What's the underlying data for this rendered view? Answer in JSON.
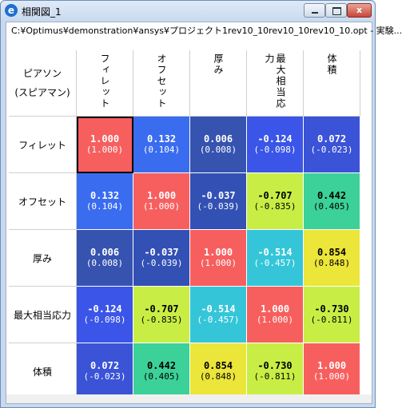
{
  "window": {
    "title": "相関図_1",
    "icon": "app-logo-icon",
    "close_glyph": "x"
  },
  "path_text": "C:¥Optimus¥demonstration¥ansys¥プロジェクト1rev10_10rev10_10rev10_10.opt - 実験...",
  "corner": {
    "line1": "ピアソン",
    "line2": "(スピアマン)"
  },
  "columns": [
    "フィレット",
    "オフセット",
    "厚み",
    "最大相当応力",
    "体積"
  ],
  "rows": [
    "フィレット",
    "オフセット",
    "厚み",
    "最大相当応力",
    "体積"
  ],
  "matrix": [
    [
      {
        "v": "1.000",
        "s": "(1.000)",
        "c": "#f75f5f"
      },
      {
        "v": "0.132",
        "s": "(0.104)",
        "c": "#3a6cf0"
      },
      {
        "v": "0.006",
        "s": "(0.008)",
        "c": "#3653b0"
      },
      {
        "v": "-0.124",
        "s": "(-0.098)",
        "c": "#3a55e8"
      },
      {
        "v": "0.072",
        "s": "(-0.023)",
        "c": "#3b53d7"
      }
    ],
    [
      {
        "v": "0.132",
        "s": "(0.104)",
        "c": "#3a6cf0"
      },
      {
        "v": "1.000",
        "s": "(1.000)",
        "c": "#f75f5f"
      },
      {
        "v": "-0.037",
        "s": "(-0.039)",
        "c": "#3350b4"
      },
      {
        "v": "-0.707",
        "s": "(-0.835)",
        "c": "#c8ee45"
      },
      {
        "v": "0.442",
        "s": "(0.405)",
        "c": "#3cd199"
      }
    ],
    [
      {
        "v": "0.006",
        "s": "(0.008)",
        "c": "#3653b0"
      },
      {
        "v": "-0.037",
        "s": "(-0.039)",
        "c": "#3350b4"
      },
      {
        "v": "1.000",
        "s": "(1.000)",
        "c": "#f75f5f"
      },
      {
        "v": "-0.514",
        "s": "(-0.457)",
        "c": "#34c6d8"
      },
      {
        "v": "0.854",
        "s": "(0.848)",
        "c": "#ece53a"
      }
    ],
    [
      {
        "v": "-0.124",
        "s": "(-0.098)",
        "c": "#3a55e8"
      },
      {
        "v": "-0.707",
        "s": "(-0.835)",
        "c": "#c8ee45"
      },
      {
        "v": "-0.514",
        "s": "(-0.457)",
        "c": "#34c6d8"
      },
      {
        "v": "1.000",
        "s": "(1.000)",
        "c": "#f75f5f"
      },
      {
        "v": "-0.730",
        "s": "(-0.811)",
        "c": "#c8ee45"
      }
    ],
    [
      {
        "v": "0.072",
        "s": "(-0.023)",
        "c": "#3b53d7"
      },
      {
        "v": "0.442",
        "s": "(0.405)",
        "c": "#3cd199"
      },
      {
        "v": "0.854",
        "s": "(0.848)",
        "c": "#ece53a"
      },
      {
        "v": "-0.730",
        "s": "(-0.811)",
        "c": "#c8ee45"
      },
      {
        "v": "1.000",
        "s": "(1.000)",
        "c": "#f75f5f"
      }
    ]
  ],
  "text_dark_on": [
    "#c8ee45",
    "#ece53a",
    "#3cd199"
  ]
}
